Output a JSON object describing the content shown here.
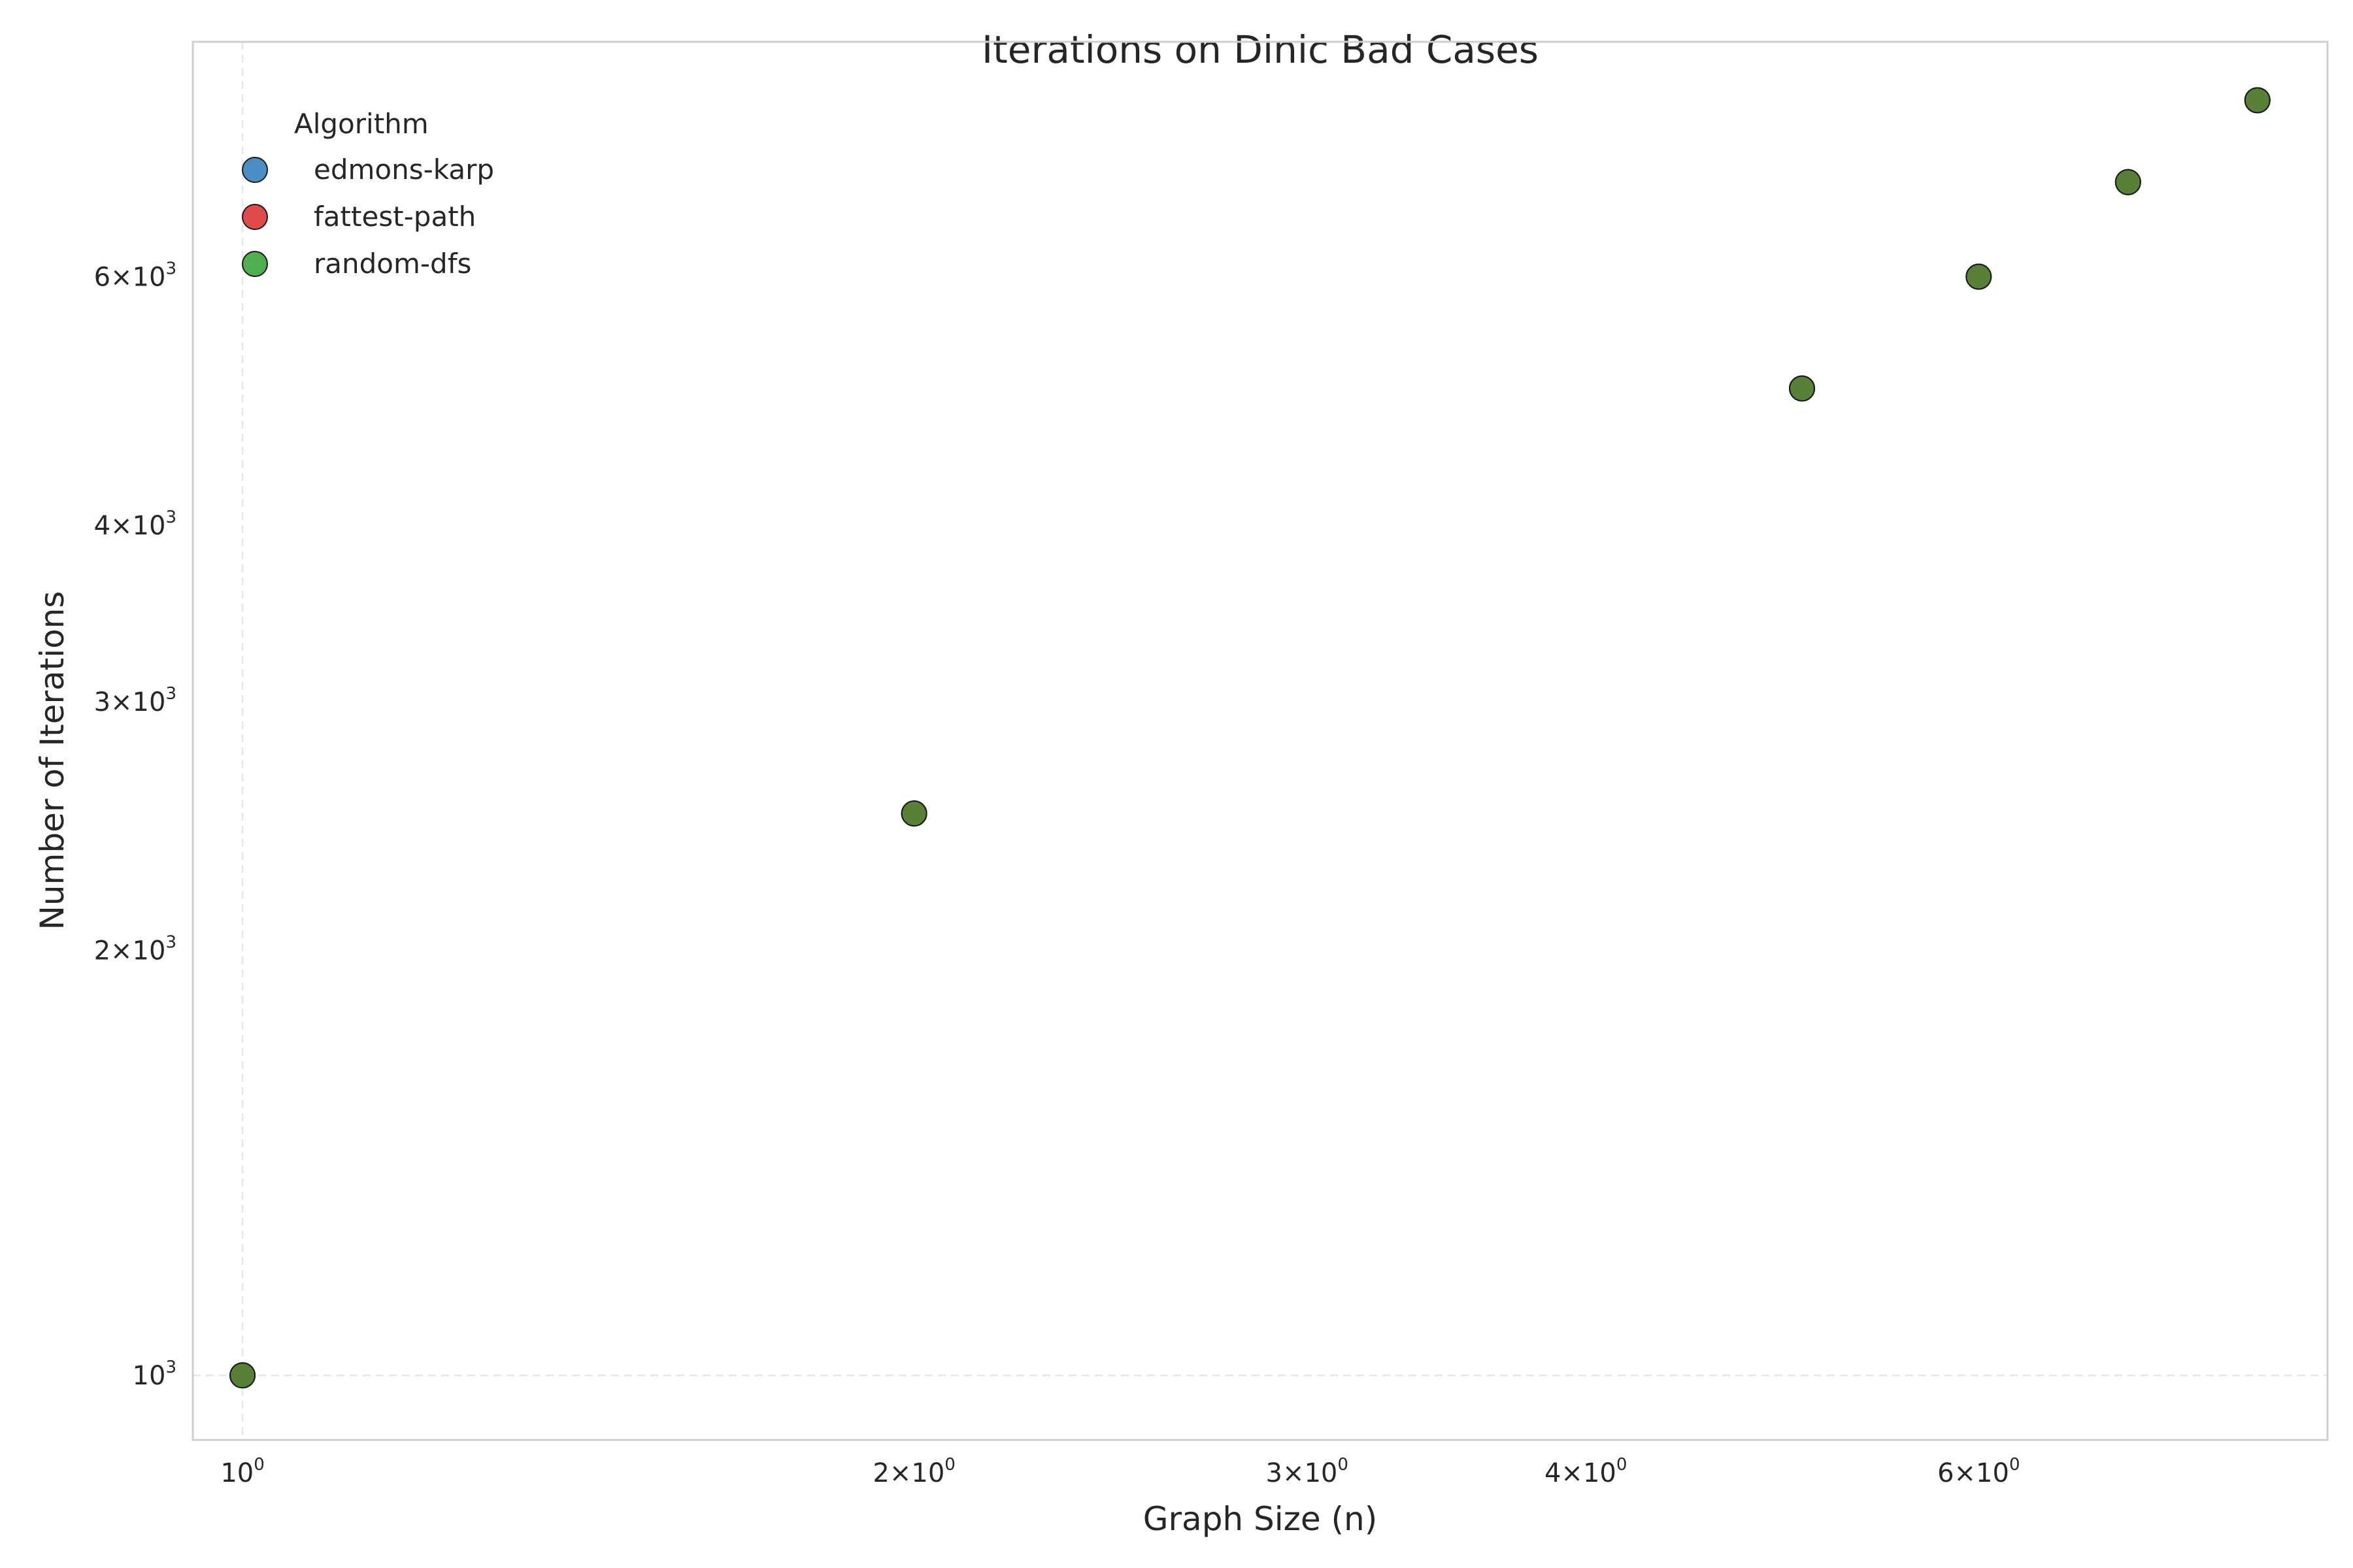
{
  "chart_data": {
    "type": "scatter",
    "title": "Iterations on Dinic Bad Cases",
    "xlabel": "Graph Size (n)",
    "ylabel": "Number of Iterations",
    "xscale": "log",
    "yscale": "log",
    "xlim": [
      0.95,
      8.6
    ],
    "ylim": [
      900,
      8800
    ],
    "grid": true,
    "legend": {
      "title": "Algorithm",
      "placement": "top-left"
    },
    "x_ticks": [
      {
        "value": 1,
        "base": "10",
        "exp": "0"
      },
      {
        "value": 2,
        "base": "2×10",
        "exp": "0"
      },
      {
        "value": 3,
        "base": "3×10",
        "exp": "0"
      },
      {
        "value": 4,
        "base": "4×10",
        "exp": "0"
      },
      {
        "value": 6,
        "base": "6×10",
        "exp": "0"
      }
    ],
    "y_ticks": [
      {
        "value": 1000,
        "base": "10",
        "exp": "3"
      },
      {
        "value": 2000,
        "base": "2×10",
        "exp": "3"
      },
      {
        "value": 3000,
        "base": "3×10",
        "exp": "3"
      },
      {
        "value": 4000,
        "base": "4×10",
        "exp": "3"
      },
      {
        "value": 6000,
        "base": "6×10",
        "exp": "3"
      }
    ],
    "series": [
      {
        "name": "edmons-karp",
        "color": "#3b7fc2",
        "x": [
          1,
          2,
          5,
          6,
          7,
          8
        ],
        "y": [
          1000,
          2500,
          5000,
          6000,
          7000,
          8000
        ]
      },
      {
        "name": "fattest-path",
        "color": "#d63a3a",
        "x": [
          1,
          2,
          5,
          6,
          7,
          8
        ],
        "y": [
          1000,
          2500,
          5000,
          6000,
          7000,
          8000
        ]
      },
      {
        "name": "random-dfs",
        "color": "#3f8f2f",
        "x": [
          1,
          2,
          5,
          6,
          7,
          8
        ],
        "y": [
          1000,
          2500,
          5000,
          6000,
          7000,
          8000
        ]
      }
    ],
    "legend_colors": [
      "#4a8ec4",
      "#df4b4b",
      "#4fae4f"
    ]
  }
}
